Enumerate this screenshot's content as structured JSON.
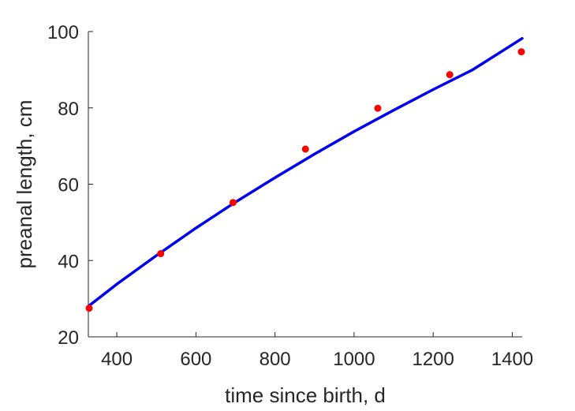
{
  "chart_data": {
    "type": "scatter",
    "title": "",
    "xlabel": "time since birth, d",
    "ylabel": "preanal length, cm",
    "xlim": [
      328,
      1425
    ],
    "ylim": [
      20,
      100
    ],
    "xticks": [
      400,
      600,
      800,
      1000,
      1200,
      1400
    ],
    "yticks": [
      20,
      40,
      60,
      80,
      100
    ],
    "grid": false,
    "series": [
      {
        "kind": "points",
        "color": "#ff0000",
        "points": [
          {
            "x": 330,
            "y": 27.5
          },
          {
            "x": 511,
            "y": 41.8
          },
          {
            "x": 694,
            "y": 55.2
          },
          {
            "x": 877,
            "y": 69.2
          },
          {
            "x": 1060,
            "y": 79.9
          },
          {
            "x": 1242,
            "y": 88.7
          },
          {
            "x": 1423,
            "y": 94.7
          }
        ]
      },
      {
        "kind": "curve",
        "color": "#0000ee",
        "points": [
          {
            "x": 328,
            "y": 28.0
          },
          {
            "x": 400,
            "y": 33.8
          },
          {
            "x": 500,
            "y": 41.3
          },
          {
            "x": 600,
            "y": 48.5
          },
          {
            "x": 700,
            "y": 55.3
          },
          {
            "x": 800,
            "y": 61.7
          },
          {
            "x": 900,
            "y": 67.9
          },
          {
            "x": 1000,
            "y": 73.8
          },
          {
            "x": 1100,
            "y": 79.4
          },
          {
            "x": 1200,
            "y": 84.8
          },
          {
            "x": 1300,
            "y": 90.0
          },
          {
            "x": 1425,
            "y": 98.2
          }
        ]
      }
    ]
  }
}
